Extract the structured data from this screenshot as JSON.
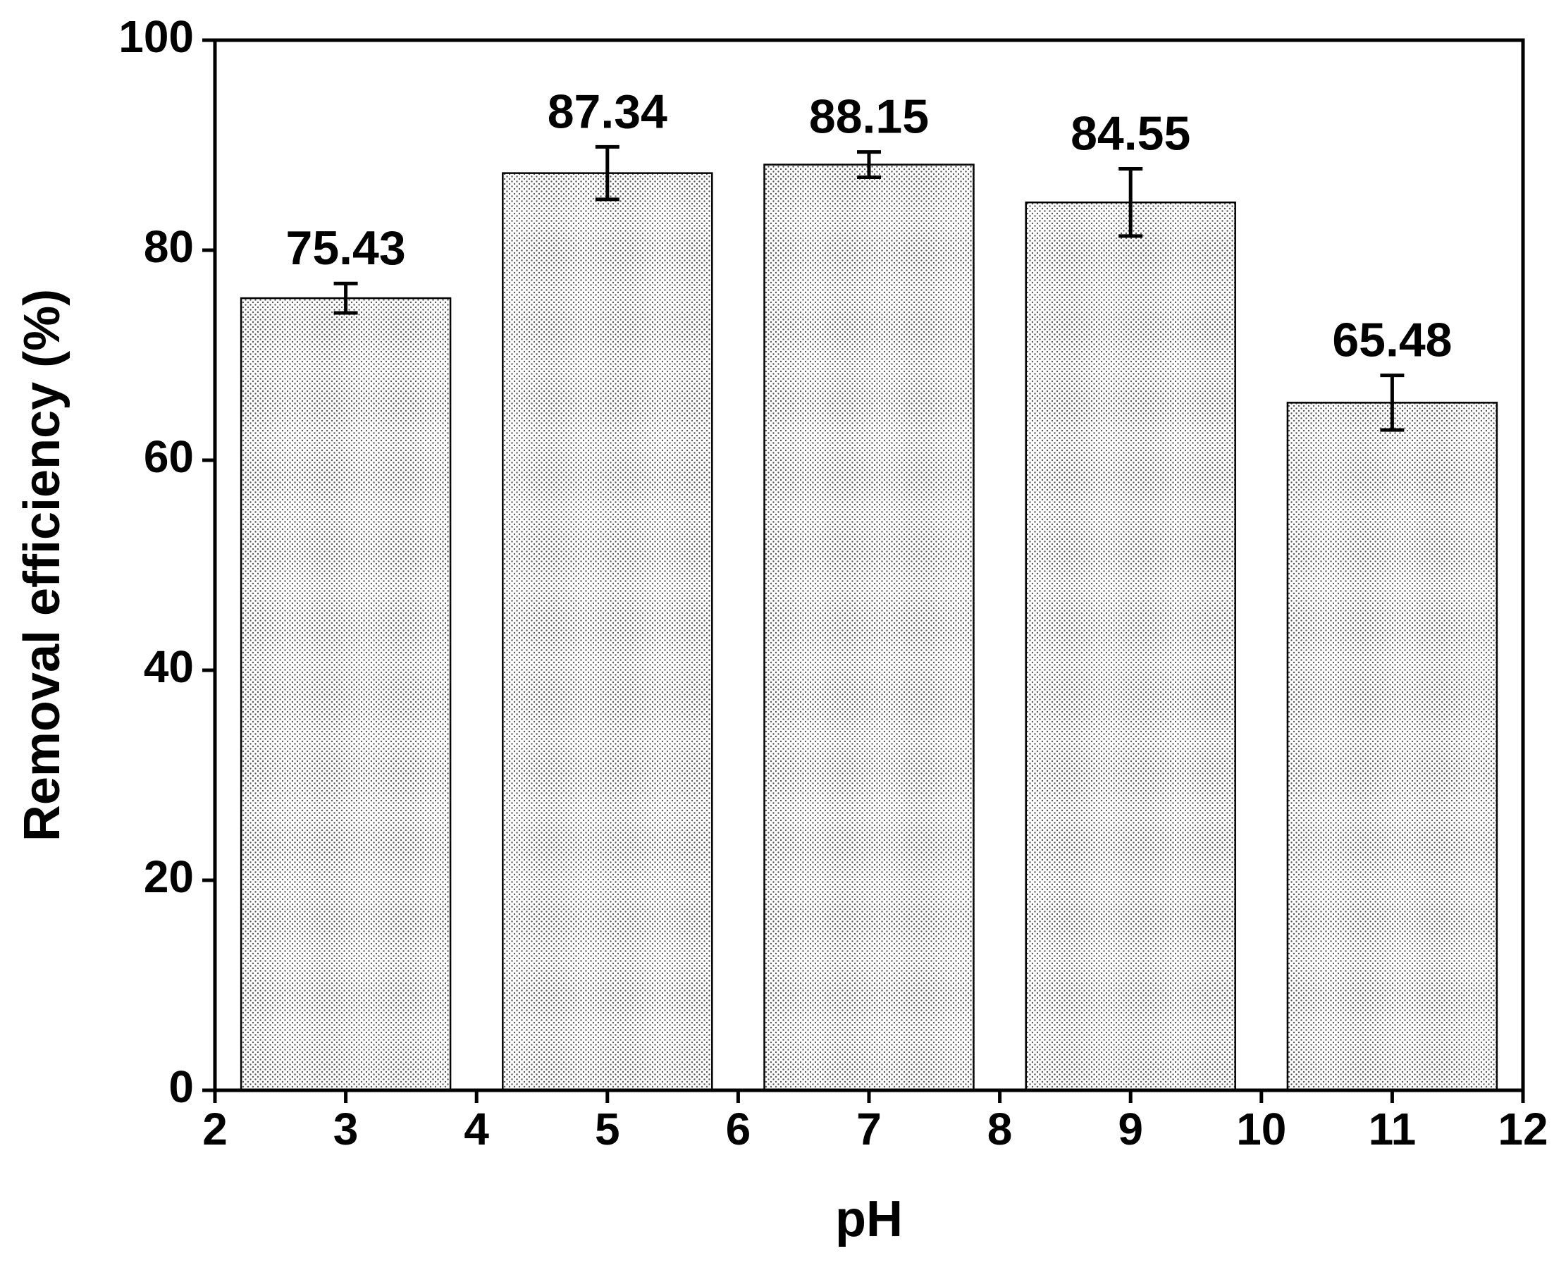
{
  "chart_data": {
    "type": "bar",
    "x": [
      3,
      5,
      7,
      9,
      11
    ],
    "values": [
      75.43,
      87.34,
      88.15,
      84.55,
      65.48
    ],
    "errors": [
      1.4,
      2.5,
      1.2,
      3.2,
      2.6
    ],
    "color": "#ffffff",
    "xlabel": "pH",
    "ylabel": "Removal efficiency (%)",
    "xlim": [
      2,
      12
    ],
    "xticks": [
      2,
      3,
      4,
      5,
      6,
      7,
      8,
      9,
      10,
      11,
      12
    ],
    "ylim": [
      0,
      100
    ],
    "yticks": [
      0,
      20,
      40,
      60,
      80,
      100
    ],
    "bar_width": 1.6
  }
}
